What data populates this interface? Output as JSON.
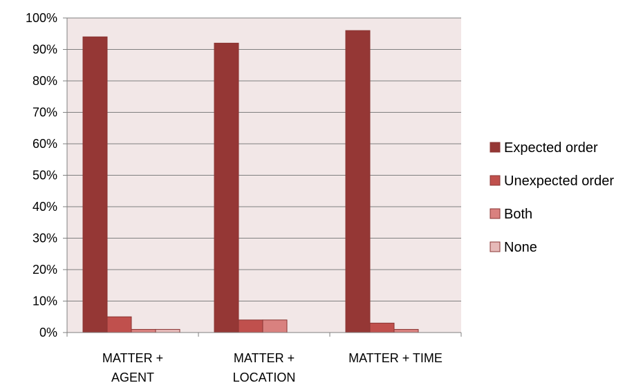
{
  "chart_data": {
    "type": "bar",
    "categories": [
      [
        "MATTER +",
        "AGENT"
      ],
      [
        "MATTER +",
        "LOCATION"
      ],
      [
        "MATTER + TIME"
      ]
    ],
    "series": [
      {
        "name": "Expected order",
        "values": [
          94,
          92,
          96
        ],
        "color": "#953735"
      },
      {
        "name": "Unexpected order",
        "values": [
          5,
          4,
          3
        ],
        "color": "#c0504d"
      },
      {
        "name": "Both",
        "values": [
          1,
          4,
          1
        ],
        "color": "#d9817f"
      },
      {
        "name": "None",
        "values": [
          1,
          0,
          0
        ],
        "color": "#e6b9b8"
      }
    ],
    "ylim": [
      0,
      100
    ],
    "yticks": [
      "0%",
      "10%",
      "20%",
      "30%",
      "40%",
      "50%",
      "60%",
      "70%",
      "80%",
      "90%",
      "100%"
    ],
    "plot_background": "#f2e7e7",
    "gridlines": true,
    "legend_position": "right"
  }
}
